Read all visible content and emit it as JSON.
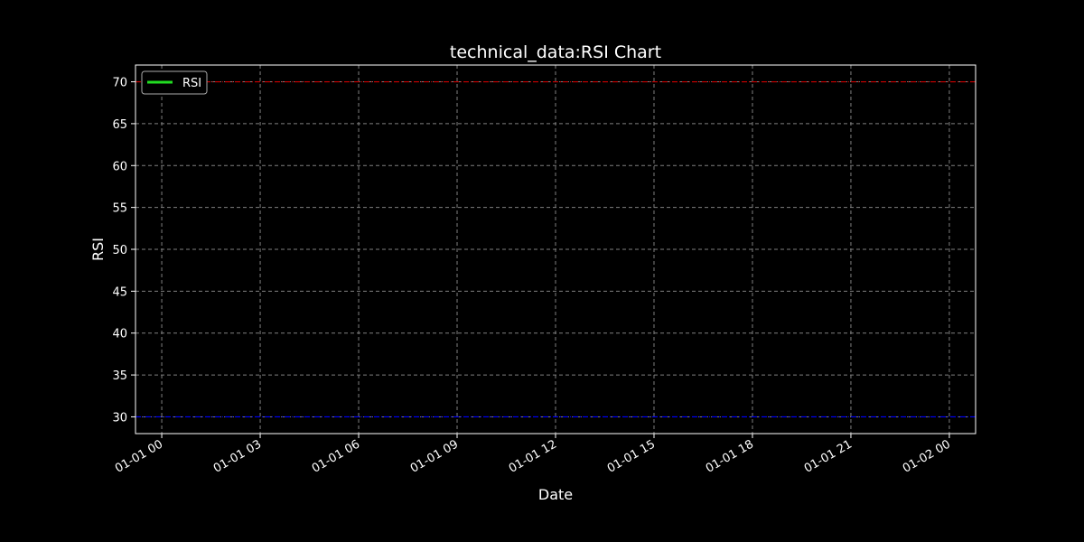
{
  "chart_data": {
    "type": "line",
    "title": "technical_data:RSI Chart",
    "xlabel": "Date",
    "ylabel": "RSI",
    "x_ticks": [
      "01-01 00",
      "01-01 03",
      "01-01 06",
      "01-01 09",
      "01-01 12",
      "01-01 15",
      "01-01 18",
      "01-01 21",
      "01-02 00"
    ],
    "y_ticks": [
      30,
      35,
      40,
      45,
      50,
      55,
      60,
      65,
      70
    ],
    "ylim": [
      28,
      72
    ],
    "xlim": [
      "2024-12-31 23:12",
      "2025-01-02 00:48"
    ],
    "grid": true,
    "legend": {
      "placement": "top-left",
      "entries": [
        {
          "label": "RSI",
          "color": "#22dd22"
        }
      ]
    },
    "series": [
      {
        "name": "RSI",
        "color": "#22dd22",
        "x": [],
        "values": []
      }
    ],
    "reference_lines": [
      {
        "y": 70,
        "color": "#cc0000",
        "style": "dash-dot"
      },
      {
        "y": 30,
        "color": "#0000ff",
        "style": "dash-dot"
      }
    ],
    "colors": {
      "background": "#000000",
      "axes": "#ffffff",
      "grid": "#808080",
      "text": "#ffffff"
    }
  }
}
